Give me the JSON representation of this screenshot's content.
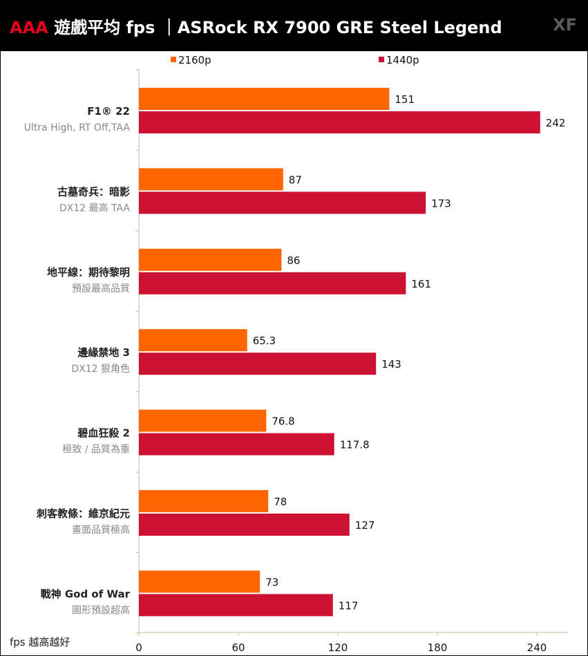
{
  "header": {
    "title_accent": "AAA",
    "title_main": "遊戲平均 fps ｜ASRock RX 7900 GRE Steel Legend",
    "logo": "XF"
  },
  "footnote": "fps 越高越好",
  "colors": {
    "series_2160": "#ff6600",
    "series_1440": "#cc1133",
    "axis": "#c8b89a",
    "title_bg": "#000000",
    "accent": "#e8001c"
  },
  "chart_data": {
    "type": "bar",
    "orientation": "horizontal",
    "categories": [
      {
        "name": "F1® 22",
        "setting": "Ultra High, RT Off,TAA"
      },
      {
        "name": "古墓奇兵：暗影",
        "setting": "DX12 最高 TAA"
      },
      {
        "name": "地平線：期待黎明",
        "setting": "預設最高品質"
      },
      {
        "name": "邊緣禁地 3",
        "setting": "DX12 狠角色"
      },
      {
        "name": "碧血狂殺 2",
        "setting": "極致 / 品質為重"
      },
      {
        "name": "刺客教條：維京紀元",
        "setting": "畫面品質極高"
      },
      {
        "name": "戰神 God of War",
        "setting": "圖形預設超高"
      }
    ],
    "series": [
      {
        "name": "2160p",
        "values": [
          151,
          87,
          86,
          65.3,
          76.8,
          78,
          73
        ],
        "labels": [
          "151",
          "87",
          "86",
          "65.3",
          "76.8",
          "78",
          "73"
        ]
      },
      {
        "name": "1440p",
        "values": [
          242,
          173,
          161,
          143,
          117.8,
          127,
          117
        ],
        "labels": [
          "242",
          "173",
          "161",
          "143",
          "117.8",
          "127",
          "117"
        ]
      }
    ],
    "xlim": [
      0,
      260
    ],
    "xticks": [
      0,
      60,
      120,
      180,
      240
    ],
    "legend_position": "top",
    "grid": false
  }
}
